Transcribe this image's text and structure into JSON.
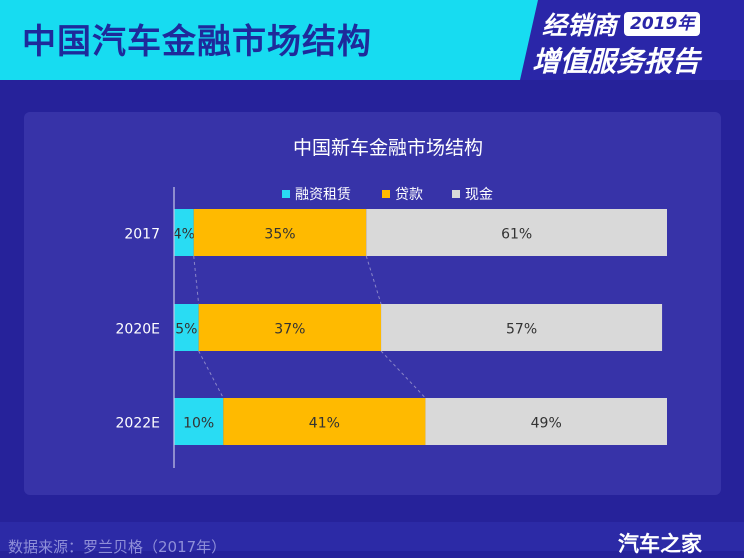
{
  "header": {
    "title": "中国汽车金融市场结构",
    "badge_top": "经销商",
    "badge_year": "2019年",
    "badge_bottom": "增值服务报告"
  },
  "footer": {
    "source": "数据来源：罗兰贝格（2017年）",
    "brand": "汽车之家"
  },
  "colors": {
    "融资租赁": "#29dcf3",
    "贷款": "#ffba00",
    "现金": "#d9d9d9",
    "header_bg": "#17dcf1",
    "page_bg": "#26229a"
  },
  "chart_data": {
    "type": "bar",
    "orientation": "horizontal",
    "stacked": true,
    "title": "中国新车金融市场结构",
    "legend_position": "top",
    "categories": [
      "2017",
      "2020E",
      "2022E"
    ],
    "series": [
      {
        "name": "融资租赁",
        "values": [
          4,
          5,
          10
        ],
        "labels": [
          "4%",
          "5%",
          "10%"
        ]
      },
      {
        "name": "贷款",
        "values": [
          35,
          37,
          41
        ],
        "labels": [
          "35%",
          "37%",
          "41%"
        ]
      },
      {
        "name": "现金",
        "values": [
          61,
          57,
          49
        ],
        "labels": [
          "61%",
          "57%",
          "49%"
        ]
      }
    ],
    "xlim": [
      0,
      100
    ],
    "grid": false
  }
}
